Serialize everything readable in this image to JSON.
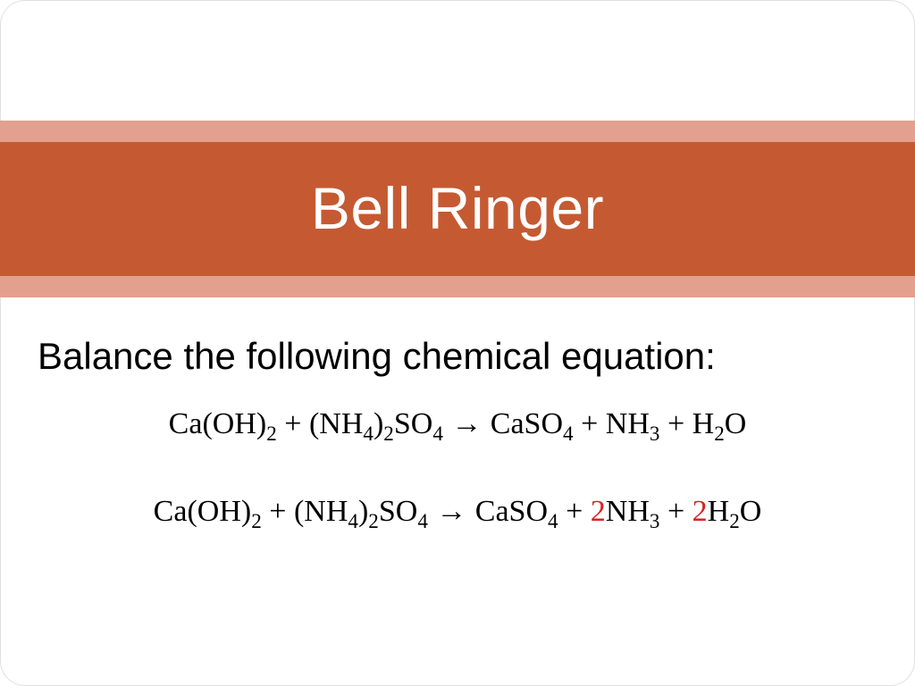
{
  "colors": {
    "title_band_main": "#c55a32",
    "title_band_accent": "#e3a08e",
    "coefficient_highlight": "#d82424",
    "text": "#000000",
    "title_text": "#ffffff",
    "background": "#ffffff"
  },
  "typography": {
    "title_fontsize": 66,
    "title_weight": 300,
    "instruction_fontsize": 42,
    "equation_fontsize": 34,
    "body_font": "Arial",
    "equation_font": "Georgia"
  },
  "title": "Bell Ringer",
  "instruction": "Balance the following chemical equation:",
  "problem": {
    "reactants": [
      {
        "formula": "Ca(OH)",
        "sub": "2"
      },
      {
        "formula": "(NH",
        "sub": "4",
        "tail": ")",
        "sub2": "2",
        "tail2": "SO",
        "sub3": "4"
      }
    ],
    "products": [
      {
        "formula": "CaSO",
        "sub": "4"
      },
      {
        "formula": "NH",
        "sub": "3"
      },
      {
        "formula": "H",
        "sub": "2",
        "tail": "O"
      }
    ]
  },
  "answer": {
    "reactants": [
      {
        "formula": "Ca(OH)",
        "sub": "2"
      },
      {
        "formula": "(NH",
        "sub": "4",
        "tail": ")",
        "sub2": "2",
        "tail2": "SO",
        "sub3": "4"
      }
    ],
    "products": [
      {
        "formula": "CaSO",
        "sub": "4"
      },
      {
        "coef": "2",
        "formula": "NH",
        "sub": "3"
      },
      {
        "coef": "2",
        "formula": "H",
        "sub": "2",
        "tail": "O"
      }
    ]
  },
  "eq": {
    "plus": " + ",
    "arrow": " → ",
    "p_r0_formula": "Ca(OH)",
    "p_r0_sub": "2",
    "p_r1_a": "(NH",
    "p_r1_sub1": "4",
    "p_r1_b": ")",
    "p_r1_sub2": "2",
    "p_r1_c": "SO",
    "p_r1_sub3": "4",
    "p_p0_a": "CaSO",
    "p_p0_sub": "4",
    "p_p1_a": "NH",
    "p_p1_sub": "3",
    "p_p2_a": "H",
    "p_p2_sub": "2",
    "p_p2_b": "O",
    "a_r0_formula": "Ca(OH)",
    "a_r0_sub": "2",
    "a_r1_a": "(NH",
    "a_r1_sub1": "4",
    "a_r1_b": ")",
    "a_r1_sub2": "2",
    "a_r1_c": "SO",
    "a_r1_sub3": "4",
    "a_p0_a": "CaSO",
    "a_p0_sub": "4",
    "a_p1_coef": "2",
    "a_p1_a": "NH",
    "a_p1_sub": "3",
    "a_p2_coef": "2",
    "a_p2_a": "H",
    "a_p2_sub": "2",
    "a_p2_b": "O"
  }
}
